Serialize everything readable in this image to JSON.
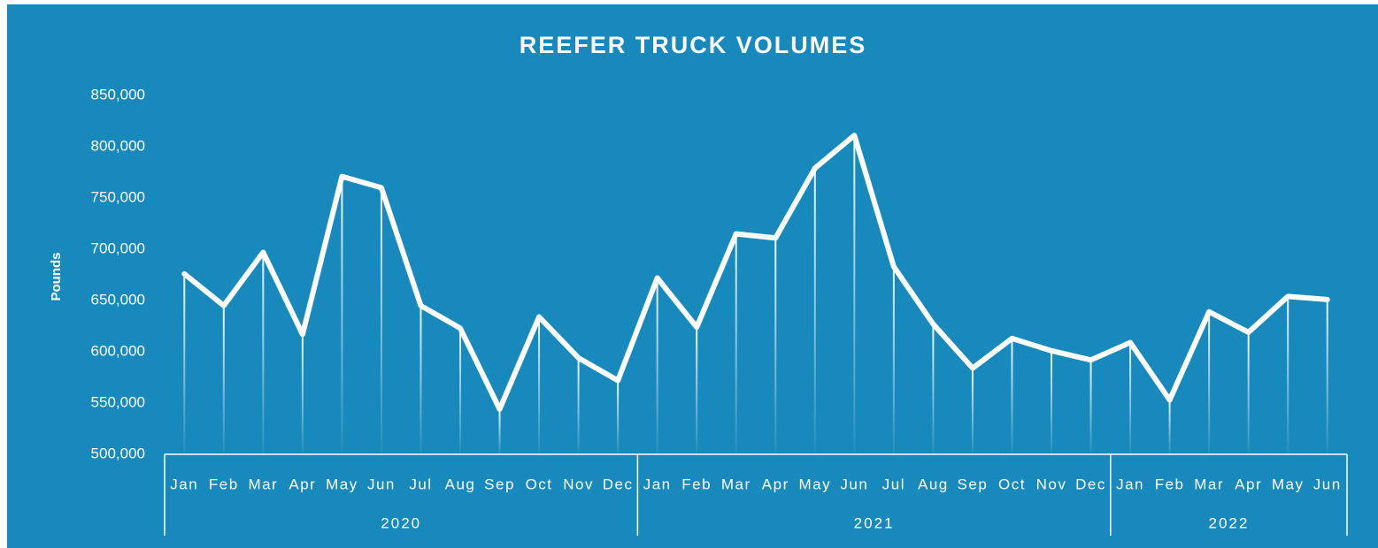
{
  "chart_data": {
    "type": "line",
    "title": "REEFER TRUCK VOLUMES",
    "y_label": "Pounds",
    "color": "#ffffff",
    "category_groups": [
      {
        "label": "2020",
        "categories": [
          "Jan",
          "Feb",
          "Mar",
          "Apr",
          "May",
          "Jun",
          "Jul",
          "Aug",
          "Sep",
          "Oct",
          "Nov",
          "Dec"
        ]
      },
      {
        "label": "2021",
        "categories": [
          "Jan",
          "Feb",
          "Mar",
          "Apr",
          "May",
          "Jun",
          "Jul",
          "Aug",
          "Sep",
          "Oct",
          "Nov",
          "Dec"
        ]
      },
      {
        "label": "2022",
        "categories": [
          "Jan",
          "Feb",
          "Mar",
          "Apr",
          "May",
          "Jun"
        ]
      }
    ],
    "values": [
      676000,
      645000,
      697000,
      617000,
      771000,
      760000,
      645000,
      623000,
      544000,
      634000,
      594000,
      572000,
      672000,
      624000,
      715000,
      711000,
      779000,
      811000,
      683000,
      627000,
      584000,
      613000,
      601000,
      592000,
      609000,
      553000,
      639000,
      619000,
      654000,
      651000
    ],
    "ylim": [
      500000,
      850000
    ],
    "yticks": [
      {
        "value": 500000,
        "label": "500,000"
      },
      {
        "value": 550000,
        "label": "550,000"
      },
      {
        "value": 600000,
        "label": "600,000"
      },
      {
        "value": 650000,
        "label": "650,000"
      },
      {
        "value": 700000,
        "label": "700,000"
      },
      {
        "value": 750000,
        "label": "750,000"
      },
      {
        "value": 800000,
        "label": "800,000"
      },
      {
        "value": 850000,
        "label": "850,000"
      }
    ],
    "drop_lines": true
  }
}
